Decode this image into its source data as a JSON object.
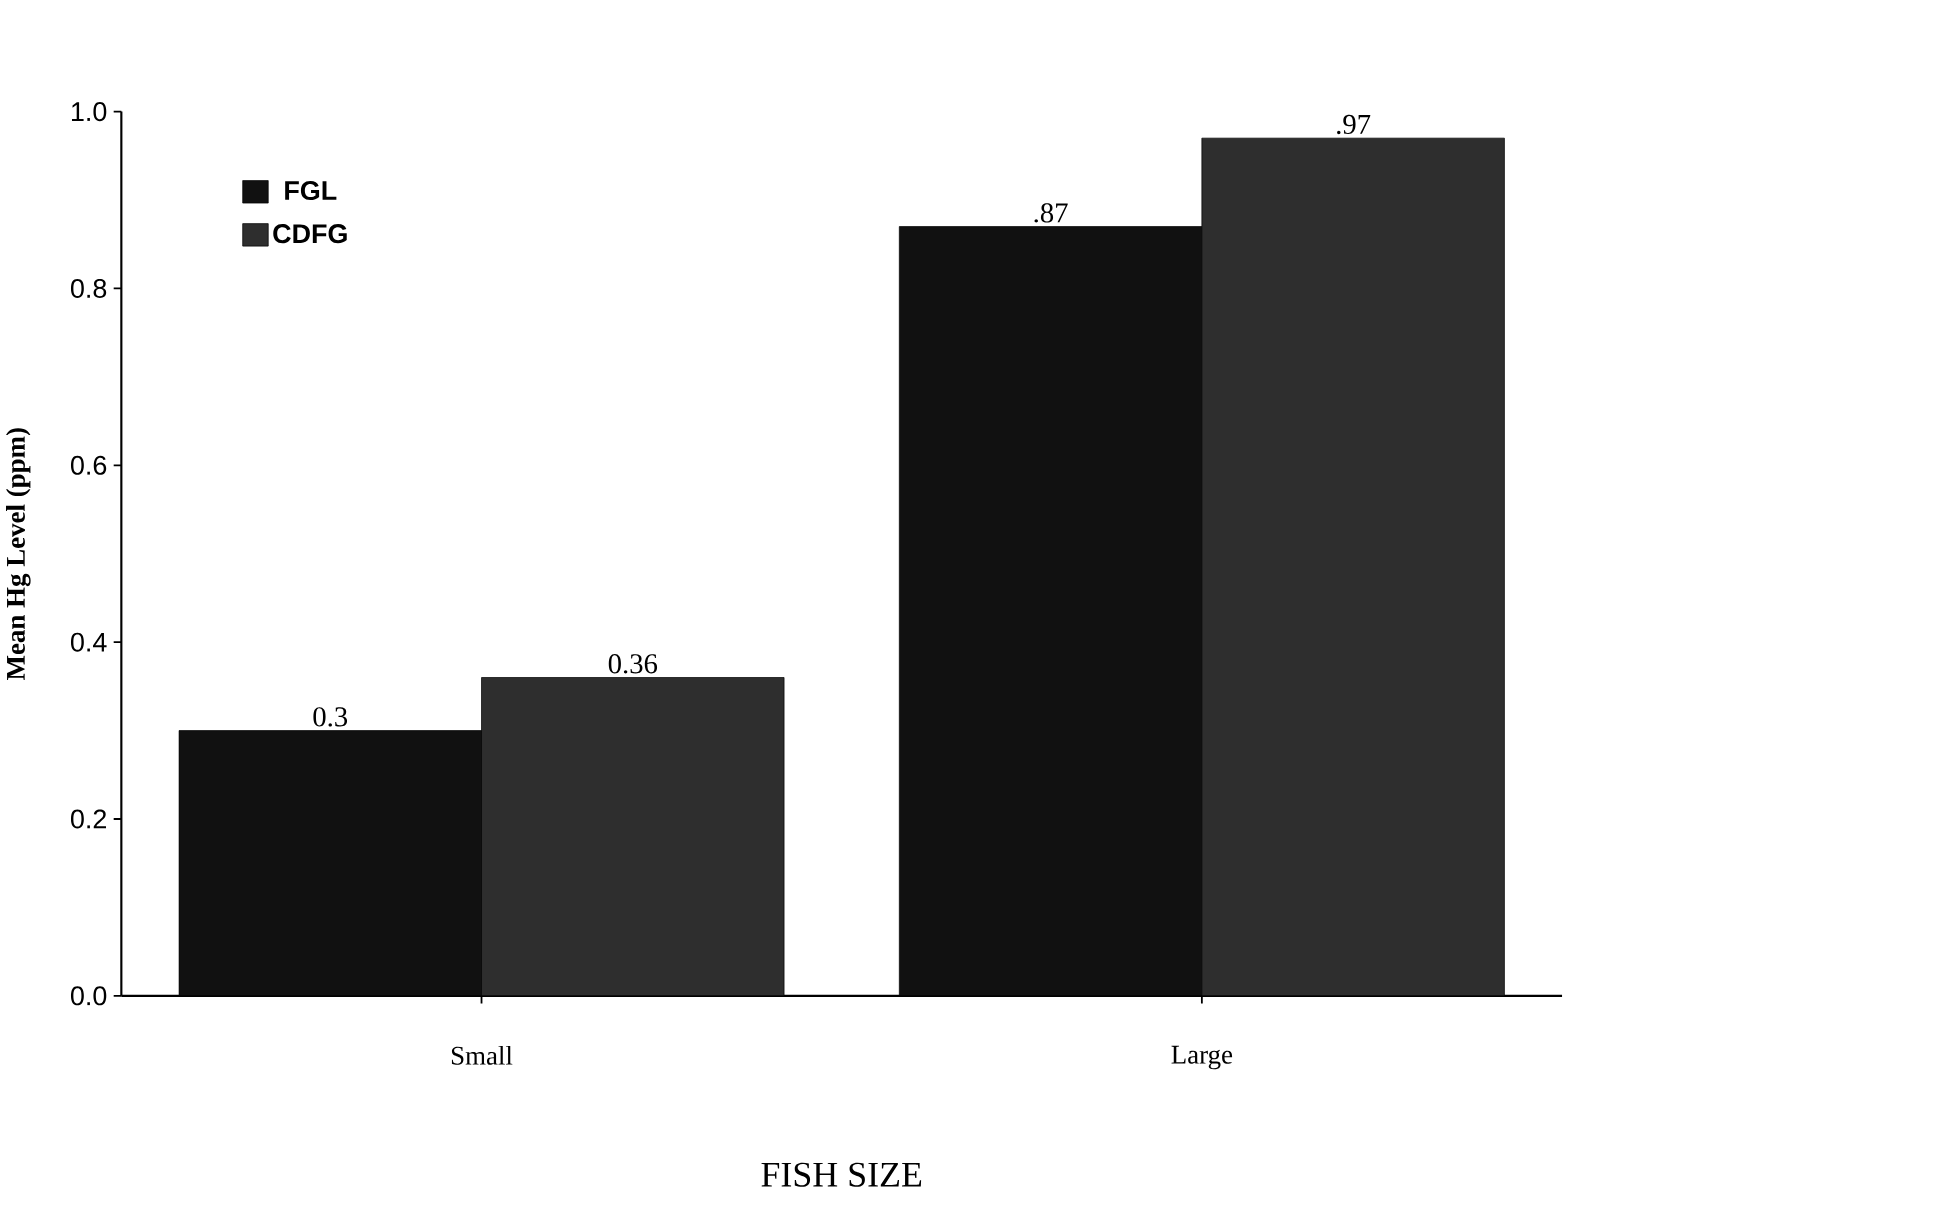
{
  "chart_data": {
    "type": "bar",
    "xlabel": "FISH    SIZE",
    "ylabel": "Mean Hg Level (ppm)",
    "categories": [
      "Small",
      "Large"
    ],
    "series": [
      {
        "name": "FGL",
        "color": "#111111",
        "values": [
          0.3,
          0.87
        ],
        "value_labels": [
          "0.3",
          ".87"
        ]
      },
      {
        "name": "CDFG",
        "color": "#2e2e2e",
        "values": [
          0.36,
          0.97
        ],
        "value_labels": [
          "0.36",
          ".97"
        ]
      }
    ],
    "ylim": [
      0,
      1.0
    ],
    "yticks": [
      {
        "value": 0,
        "label": "0.0"
      },
      {
        "value": 0.2,
        "label": "0.2"
      },
      {
        "value": 0.4,
        "label": "0.4"
      },
      {
        "value": 0.6,
        "label": "0.6"
      },
      {
        "value": 0.8,
        "label": "0.8"
      },
      {
        "value": 1.0,
        "label": "1.0"
      }
    ],
    "grid": false,
    "legend": "top left"
  }
}
